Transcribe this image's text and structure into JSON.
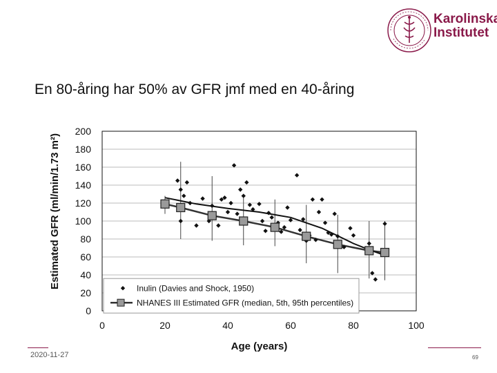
{
  "slide": {
    "title": "En 80-åring har 50% av GFR jmf med en 40-åring",
    "date": "2020-11-27",
    "page_number": "69"
  },
  "logo": {
    "line1": "Karolinska",
    "line2": "Institutet",
    "seal_text": "KAROLINSKA INSTITUTET ANNO 1810",
    "color": "#8a1a4a"
  },
  "chart_data": {
    "type": "scatter",
    "xlabel": "Age (years)",
    "ylabel": "Estimated GFR (ml/min/1.73 m²)",
    "xlim": [
      0,
      100
    ],
    "ylim": [
      0,
      200
    ],
    "xticks": [
      0,
      20,
      40,
      60,
      80,
      100
    ],
    "yticks": [
      0,
      20,
      40,
      60,
      80,
      100,
      120,
      140,
      160,
      180,
      200
    ],
    "grid": "horizontal",
    "legend_position": "bottom-left",
    "series": [
      {
        "name": "Inulin (Davies and Shock, 1950)",
        "kind": "scatter",
        "marker": "diamond",
        "color": "#111111",
        "points": [
          [
            24,
            145
          ],
          [
            25,
            135
          ],
          [
            26,
            128
          ],
          [
            27,
            143
          ],
          [
            28,
            120
          ],
          [
            30,
            95
          ],
          [
            32,
            125
          ],
          [
            34,
            100
          ],
          [
            35,
            117
          ],
          [
            36,
            105
          ],
          [
            38,
            124
          ],
          [
            39,
            126
          ],
          [
            40,
            110
          ],
          [
            41,
            120
          ],
          [
            42,
            162
          ],
          [
            43,
            108
          ],
          [
            44,
            135
          ],
          [
            45,
            128
          ],
          [
            46,
            143
          ],
          [
            47,
            118
          ],
          [
            48,
            113
          ],
          [
            50,
            119
          ],
          [
            51,
            100
          ],
          [
            52,
            89
          ],
          [
            53,
            109
          ],
          [
            54,
            104
          ],
          [
            55,
            96
          ],
          [
            56,
            98
          ],
          [
            57,
            88
          ],
          [
            58,
            93
          ],
          [
            59,
            115
          ],
          [
            60,
            101
          ],
          [
            62,
            151
          ],
          [
            63,
            90
          ],
          [
            64,
            102
          ],
          [
            65,
            78
          ],
          [
            66,
            84
          ],
          [
            67,
            124
          ],
          [
            68,
            79
          ],
          [
            69,
            110
          ],
          [
            70,
            124
          ],
          [
            71,
            98
          ],
          [
            72,
            87
          ],
          [
            73,
            85
          ],
          [
            74,
            108
          ],
          [
            75,
            83
          ],
          [
            77,
            71
          ],
          [
            79,
            92
          ],
          [
            80,
            84
          ],
          [
            85,
            75
          ],
          [
            86,
            42
          ],
          [
            87,
            35
          ],
          [
            90,
            97
          ],
          [
            25,
            100
          ],
          [
            37,
            95
          ]
        ]
      },
      {
        "name": "NHANES III Estimated GFR (median, 5th, 95th percentiles)",
        "kind": "line-with-errorbars",
        "marker": "square",
        "color": "#333333",
        "marker_fill": "#9a9a9a",
        "points": [
          {
            "x": 20,
            "y": 119,
            "lo": 108,
            "hi": 128
          },
          {
            "x": 25,
            "y": 115,
            "lo": 80,
            "hi": 166
          },
          {
            "x": 35,
            "y": 106,
            "lo": 78,
            "hi": 150
          },
          {
            "x": 45,
            "y": 100,
            "lo": 73,
            "hi": 128
          },
          {
            "x": 55,
            "y": 93,
            "lo": 72,
            "hi": 124
          },
          {
            "x": 65,
            "y": 83,
            "lo": 53,
            "hi": 118
          },
          {
            "x": 75,
            "y": 74,
            "lo": 42,
            "hi": 107
          },
          {
            "x": 85,
            "y": 67,
            "lo": 36,
            "hi": 100
          },
          {
            "x": 90,
            "y": 65,
            "lo": 34,
            "hi": 100
          }
        ]
      },
      {
        "name": "",
        "kind": "line",
        "color": "#111111",
        "points": [
          [
            20,
            126
          ],
          [
            30,
            119
          ],
          [
            40,
            114
          ],
          [
            50,
            110
          ],
          [
            60,
            104
          ],
          [
            70,
            92
          ],
          [
            80,
            75
          ],
          [
            85,
            68
          ],
          [
            89,
            63
          ]
        ]
      }
    ]
  }
}
